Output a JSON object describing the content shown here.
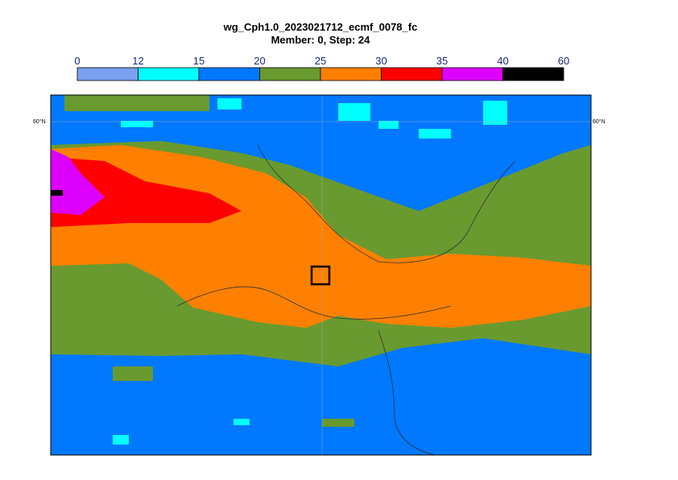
{
  "title": "wg_Cph1.0_2023021712_ecmf_0078_fc",
  "subtitle": "Member: 0, Step: 24",
  "colorbar": {
    "ticks": [
      0,
      12,
      15,
      20,
      25,
      30,
      35,
      40,
      60
    ],
    "colors": [
      "#7aa0f0",
      "#00ffff",
      "#0078ff",
      "#699a2f",
      "#ff8000",
      "#ff0000",
      "#dd00ff",
      "#000000"
    ]
  },
  "map": {
    "lat_label_left": "60°N",
    "lat_label_right": "60°N"
  }
}
